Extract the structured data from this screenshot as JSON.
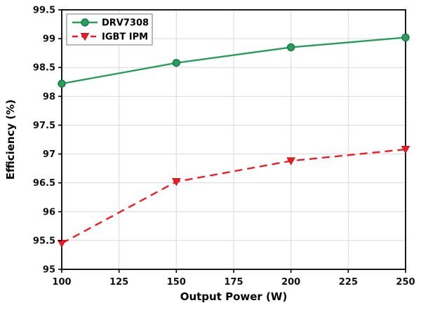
{
  "chart_data": {
    "type": "line",
    "title": "",
    "xlabel": "Output Power (W)",
    "ylabel": "Efficiency (%)",
    "xlim": [
      100,
      250
    ],
    "ylim": [
      95,
      99.5
    ],
    "xticks": [
      100,
      125,
      150,
      175,
      200,
      225,
      250
    ],
    "yticks": [
      95,
      95.5,
      96,
      96.5,
      97,
      97.5,
      98,
      98.5,
      99,
      99.5
    ],
    "grid": true,
    "legend_position": "top-left",
    "x": [
      100,
      150,
      200,
      250
    ],
    "series": [
      {
        "name": "DRV7308",
        "values": [
          98.22,
          98.58,
          98.85,
          99.02
        ],
        "color": "#2a9d5c",
        "edge_color": "#137a43",
        "line_style": "solid",
        "marker": "circle"
      },
      {
        "name": "IGBT IPM",
        "values": [
          95.45,
          96.52,
          96.88,
          97.08
        ],
        "color": "#ee1c25",
        "edge_color": "#c40f16",
        "line_style": "dashed",
        "marker": "triangle-down"
      }
    ],
    "style": {
      "grid_color": "#d9d9d9",
      "axis_color": "#000000",
      "text_color": "#111111",
      "background": "#ffffff",
      "legend_border": "#8c8c8c"
    }
  }
}
